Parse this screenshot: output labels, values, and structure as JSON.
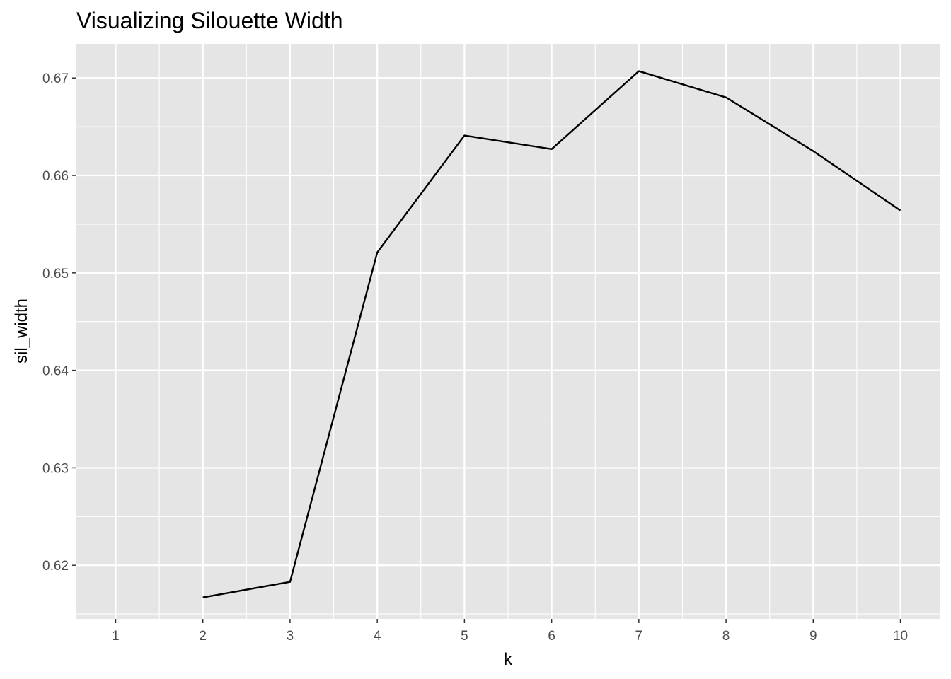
{
  "chart_data": {
    "type": "line",
    "title": "Visualizing Silouette Width",
    "xlabel": "k",
    "ylabel": "sil_width",
    "x": [
      2,
      3,
      4,
      5,
      6,
      7,
      8,
      9,
      10
    ],
    "y": [
      0.6167,
      0.6183,
      0.6521,
      0.6641,
      0.6627,
      0.6707,
      0.668,
      0.6625,
      0.6564
    ],
    "xlim": [
      0.55,
      10.45
    ],
    "ylim": [
      0.6145,
      0.6735
    ],
    "x_ticks": [
      1,
      2,
      3,
      4,
      5,
      6,
      7,
      8,
      9,
      10
    ],
    "x_tick_labels": [
      "1",
      "2",
      "3",
      "4",
      "5",
      "6",
      "7",
      "8",
      "9",
      "10"
    ],
    "y_ticks": [
      0.62,
      0.63,
      0.64,
      0.65,
      0.66,
      0.67
    ],
    "y_tick_labels": [
      "0.62",
      "0.63",
      "0.64",
      "0.65",
      "0.66",
      "0.67"
    ],
    "grid": true,
    "line_color": "#000000",
    "panel_background": "#e5e5e5"
  }
}
